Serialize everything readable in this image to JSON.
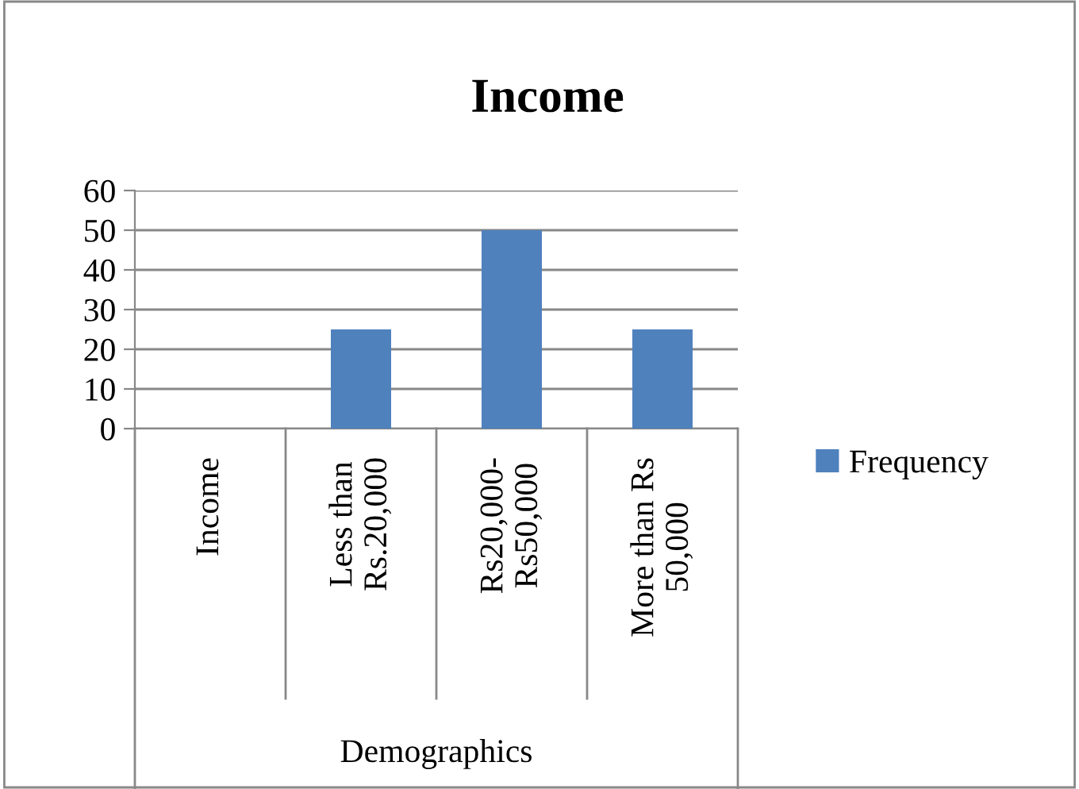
{
  "chart_data": {
    "type": "bar",
    "title": "Income",
    "xlabel": "Demographics",
    "categories": [
      "Income",
      "Less than\nRs.20,000",
      "Rs20,000-\nRs50,000",
      "More than Rs\n50,000"
    ],
    "series": [
      {
        "name": "Frequency",
        "color": "#4f81bd",
        "values": [
          null,
          25,
          50,
          25
        ]
      }
    ],
    "ylim": [
      0,
      60
    ],
    "yticks": [
      0,
      10,
      20,
      30,
      40,
      50,
      60
    ],
    "grid": "y",
    "legend": "right"
  }
}
